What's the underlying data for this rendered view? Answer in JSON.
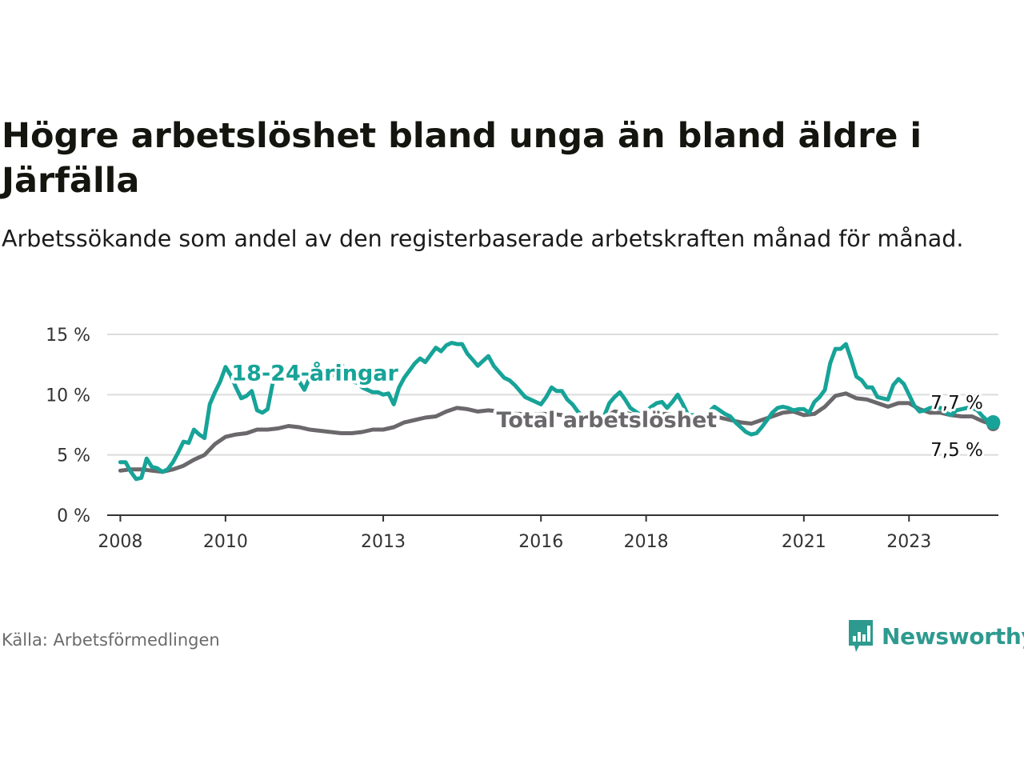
{
  "title": "Högre arbetslöshet bland unga än bland äldre i Järfälla",
  "subtitle": "Arbetssökande som andel av den registerbaserade arbetskraften månad för månad.",
  "source": "Källa: Arbetsförmedlingen",
  "brand": {
    "name": "Newsworthy",
    "icon": "bar-chart-speech-bubble-icon",
    "color": "#2e9a8f"
  },
  "chart_data": {
    "type": "line",
    "title": "Högre arbetslöshet bland unga än bland äldre i Järfälla",
    "xlabel": "",
    "ylabel": "",
    "xlim": [
      2007.75,
      2024.7
    ],
    "ylim": [
      0,
      15
    ],
    "grid": true,
    "y_ticks": [
      0,
      5,
      10,
      15
    ],
    "y_tick_labels": [
      "0 %",
      "5 %",
      "10 %",
      "15 %"
    ],
    "x_ticks": [
      2008,
      2010,
      2013,
      2016,
      2018,
      2021,
      2023
    ],
    "x_tick_labels": [
      "2008",
      "2010",
      "2013",
      "2016",
      "2018",
      "2021",
      "2023"
    ],
    "series": [
      {
        "name": "18-24-åringar",
        "label": "18-24-åringar",
        "color": "#17a398",
        "end_label": "7,7 %",
        "label_at": [
          2011.7,
          11.2
        ],
        "points": [
          [
            2008.0,
            4.4
          ],
          [
            2008.1,
            4.4
          ],
          [
            2008.2,
            3.6
          ],
          [
            2008.3,
            3.0
          ],
          [
            2008.4,
            3.1
          ],
          [
            2008.5,
            4.7
          ],
          [
            2008.6,
            4.0
          ],
          [
            2008.7,
            3.9
          ],
          [
            2008.8,
            3.6
          ],
          [
            2008.9,
            3.8
          ],
          [
            2009.0,
            4.4
          ],
          [
            2009.1,
            5.2
          ],
          [
            2009.2,
            6.1
          ],
          [
            2009.3,
            6.0
          ],
          [
            2009.4,
            7.1
          ],
          [
            2009.5,
            6.7
          ],
          [
            2009.6,
            6.4
          ],
          [
            2009.7,
            9.2
          ],
          [
            2009.8,
            10.2
          ],
          [
            2009.9,
            11.1
          ],
          [
            2010.0,
            12.3
          ],
          [
            2010.1,
            11.6
          ],
          [
            2010.2,
            10.6
          ],
          [
            2010.3,
            9.7
          ],
          [
            2010.4,
            9.9
          ],
          [
            2010.5,
            10.3
          ],
          [
            2010.6,
            8.7
          ],
          [
            2010.7,
            8.5
          ],
          [
            2010.8,
            8.8
          ],
          [
            2010.9,
            11.0
          ],
          [
            2011.0,
            11.5
          ],
          [
            2011.1,
            11.9
          ],
          [
            2011.2,
            12.1
          ],
          [
            2011.3,
            11.9
          ],
          [
            2011.4,
            11.1
          ],
          [
            2011.5,
            10.4
          ],
          [
            2011.6,
            11.4
          ],
          [
            2011.7,
            11.2
          ],
          [
            2011.8,
            11.4
          ],
          [
            2011.9,
            11.2
          ],
          [
            2012.0,
            11.4
          ],
          [
            2012.1,
            12.3
          ],
          [
            2012.2,
            12.6
          ],
          [
            2012.3,
            11.7
          ],
          [
            2012.4,
            11.1
          ],
          [
            2012.5,
            11.0
          ],
          [
            2012.6,
            10.6
          ],
          [
            2012.7,
            10.4
          ],
          [
            2012.8,
            10.2
          ],
          [
            2012.9,
            10.2
          ],
          [
            2013.0,
            10.0
          ],
          [
            2013.1,
            10.1
          ],
          [
            2013.2,
            9.2
          ],
          [
            2013.3,
            10.6
          ],
          [
            2013.4,
            11.4
          ],
          [
            2013.5,
            12.0
          ],
          [
            2013.6,
            12.6
          ],
          [
            2013.7,
            13.0
          ],
          [
            2013.8,
            12.7
          ],
          [
            2013.9,
            13.3
          ],
          [
            2014.0,
            13.9
          ],
          [
            2014.1,
            13.6
          ],
          [
            2014.2,
            14.1
          ],
          [
            2014.3,
            14.3
          ],
          [
            2014.4,
            14.2
          ],
          [
            2014.5,
            14.2
          ],
          [
            2014.6,
            13.4
          ],
          [
            2014.7,
            12.9
          ],
          [
            2014.8,
            12.4
          ],
          [
            2014.9,
            12.8
          ],
          [
            2015.0,
            13.2
          ],
          [
            2015.1,
            12.4
          ],
          [
            2015.2,
            11.9
          ],
          [
            2015.3,
            11.4
          ],
          [
            2015.4,
            11.2
          ],
          [
            2015.5,
            10.8
          ],
          [
            2015.6,
            10.3
          ],
          [
            2015.7,
            9.8
          ],
          [
            2015.8,
            9.6
          ],
          [
            2015.9,
            9.4
          ],
          [
            2016.0,
            9.2
          ],
          [
            2016.1,
            9.8
          ],
          [
            2016.2,
            10.6
          ],
          [
            2016.3,
            10.3
          ],
          [
            2016.4,
            10.3
          ],
          [
            2016.5,
            9.6
          ],
          [
            2016.6,
            9.2
          ],
          [
            2016.7,
            8.6
          ],
          [
            2016.8,
            8.2
          ],
          [
            2016.9,
            7.9
          ],
          [
            2017.0,
            7.8
          ],
          [
            2017.1,
            7.7
          ],
          [
            2017.2,
            8.2
          ],
          [
            2017.3,
            9.3
          ],
          [
            2017.4,
            9.8
          ],
          [
            2017.5,
            10.2
          ],
          [
            2017.6,
            9.6
          ],
          [
            2017.7,
            8.9
          ],
          [
            2017.8,
            8.6
          ],
          [
            2017.9,
            8.3
          ],
          [
            2018.0,
            8.6
          ],
          [
            2018.1,
            9.0
          ],
          [
            2018.2,
            9.3
          ],
          [
            2018.3,
            9.4
          ],
          [
            2018.4,
            8.9
          ],
          [
            2018.5,
            9.4
          ],
          [
            2018.6,
            10.0
          ],
          [
            2018.7,
            9.2
          ],
          [
            2018.8,
            8.3
          ],
          [
            2018.9,
            8.3
          ],
          [
            2019.0,
            8.2
          ],
          [
            2019.1,
            8.1
          ],
          [
            2019.2,
            8.6
          ],
          [
            2019.3,
            9.0
          ],
          [
            2019.4,
            8.7
          ],
          [
            2019.5,
            8.4
          ],
          [
            2019.6,
            8.2
          ],
          [
            2019.7,
            7.7
          ],
          [
            2019.8,
            7.3
          ],
          [
            2019.9,
            6.9
          ],
          [
            2020.0,
            6.7
          ],
          [
            2020.1,
            6.8
          ],
          [
            2020.2,
            7.3
          ],
          [
            2020.3,
            7.9
          ],
          [
            2020.4,
            8.5
          ],
          [
            2020.5,
            8.9
          ],
          [
            2020.6,
            9.0
          ],
          [
            2020.7,
            8.9
          ],
          [
            2020.8,
            8.7
          ],
          [
            2020.9,
            8.8
          ],
          [
            2021.0,
            8.8
          ],
          [
            2021.1,
            8.5
          ],
          [
            2021.2,
            9.4
          ],
          [
            2021.3,
            9.8
          ],
          [
            2021.4,
            10.4
          ],
          [
            2021.5,
            12.6
          ],
          [
            2021.6,
            13.8
          ],
          [
            2021.7,
            13.8
          ],
          [
            2021.8,
            14.2
          ],
          [
            2021.9,
            12.9
          ],
          [
            2022.0,
            11.5
          ],
          [
            2022.1,
            11.2
          ],
          [
            2022.2,
            10.6
          ],
          [
            2022.3,
            10.6
          ],
          [
            2022.4,
            9.8
          ],
          [
            2022.5,
            9.7
          ],
          [
            2022.6,
            9.6
          ],
          [
            2022.7,
            10.8
          ],
          [
            2022.8,
            11.3
          ],
          [
            2022.9,
            10.9
          ],
          [
            2023.0,
            10.0
          ],
          [
            2023.1,
            9.1
          ],
          [
            2023.2,
            8.6
          ],
          [
            2023.3,
            8.7
          ],
          [
            2023.4,
            8.9
          ],
          [
            2023.5,
            8.9
          ],
          [
            2023.6,
            8.9
          ],
          [
            2023.7,
            8.5
          ],
          [
            2023.8,
            8.3
          ],
          [
            2023.9,
            8.7
          ],
          [
            2024.0,
            8.8
          ],
          [
            2024.1,
            8.9
          ],
          [
            2024.2,
            8.9
          ],
          [
            2024.3,
            8.7
          ],
          [
            2024.4,
            8.2
          ],
          [
            2024.5,
            7.8
          ],
          [
            2024.6,
            7.7
          ]
        ]
      },
      {
        "name": "Total arbetslöshet",
        "label": "Total arbetslöshet",
        "color": "#6b686c",
        "end_label": "7,5 %",
        "label_at": [
          2017.25,
          7.3
        ],
        "points": [
          [
            2008.0,
            3.7
          ],
          [
            2008.2,
            3.8
          ],
          [
            2008.4,
            3.8
          ],
          [
            2008.6,
            3.7
          ],
          [
            2008.8,
            3.6
          ],
          [
            2009.0,
            3.8
          ],
          [
            2009.2,
            4.1
          ],
          [
            2009.4,
            4.6
          ],
          [
            2009.6,
            5.0
          ],
          [
            2009.8,
            5.9
          ],
          [
            2010.0,
            6.5
          ],
          [
            2010.2,
            6.7
          ],
          [
            2010.4,
            6.8
          ],
          [
            2010.6,
            7.1
          ],
          [
            2010.8,
            7.1
          ],
          [
            2011.0,
            7.2
          ],
          [
            2011.2,
            7.4
          ],
          [
            2011.4,
            7.3
          ],
          [
            2011.6,
            7.1
          ],
          [
            2011.8,
            7.0
          ],
          [
            2012.0,
            6.9
          ],
          [
            2012.2,
            6.8
          ],
          [
            2012.4,
            6.8
          ],
          [
            2012.6,
            6.9
          ],
          [
            2012.8,
            7.1
          ],
          [
            2013.0,
            7.1
          ],
          [
            2013.2,
            7.3
          ],
          [
            2013.4,
            7.7
          ],
          [
            2013.6,
            7.9
          ],
          [
            2013.8,
            8.1
          ],
          [
            2014.0,
            8.2
          ],
          [
            2014.2,
            8.6
          ],
          [
            2014.4,
            8.9
          ],
          [
            2014.6,
            8.8
          ],
          [
            2014.8,
            8.6
          ],
          [
            2015.0,
            8.7
          ],
          [
            2015.2,
            8.6
          ],
          [
            2015.4,
            8.4
          ],
          [
            2015.6,
            8.4
          ],
          [
            2015.8,
            8.3
          ],
          [
            2016.0,
            8.4
          ],
          [
            2016.2,
            8.4
          ],
          [
            2016.4,
            8.3
          ],
          [
            2016.6,
            8.2
          ],
          [
            2016.8,
            8.0
          ],
          [
            2017.0,
            7.9
          ],
          [
            2017.2,
            8.1
          ],
          [
            2017.4,
            8.6
          ],
          [
            2017.6,
            8.5
          ],
          [
            2017.8,
            8.3
          ],
          [
            2018.0,
            8.3
          ],
          [
            2018.2,
            8.4
          ],
          [
            2018.4,
            8.4
          ],
          [
            2018.6,
            8.3
          ],
          [
            2018.8,
            8.2
          ],
          [
            2019.0,
            8.2
          ],
          [
            2019.2,
            8.3
          ],
          [
            2019.4,
            8.1
          ],
          [
            2019.6,
            7.9
          ],
          [
            2019.8,
            7.7
          ],
          [
            2020.0,
            7.6
          ],
          [
            2020.2,
            7.9
          ],
          [
            2020.4,
            8.2
          ],
          [
            2020.6,
            8.5
          ],
          [
            2020.8,
            8.6
          ],
          [
            2021.0,
            8.3
          ],
          [
            2021.2,
            8.4
          ],
          [
            2021.4,
            9.0
          ],
          [
            2021.6,
            9.9
          ],
          [
            2021.8,
            10.1
          ],
          [
            2022.0,
            9.7
          ],
          [
            2022.2,
            9.6
          ],
          [
            2022.4,
            9.3
          ],
          [
            2022.6,
            9.0
          ],
          [
            2022.8,
            9.3
          ],
          [
            2023.0,
            9.3
          ],
          [
            2023.2,
            8.8
          ],
          [
            2023.4,
            8.5
          ],
          [
            2023.6,
            8.5
          ],
          [
            2023.8,
            8.3
          ],
          [
            2024.0,
            8.2
          ],
          [
            2024.2,
            8.2
          ],
          [
            2024.4,
            7.8
          ],
          [
            2024.6,
            7.5
          ]
        ]
      }
    ]
  }
}
